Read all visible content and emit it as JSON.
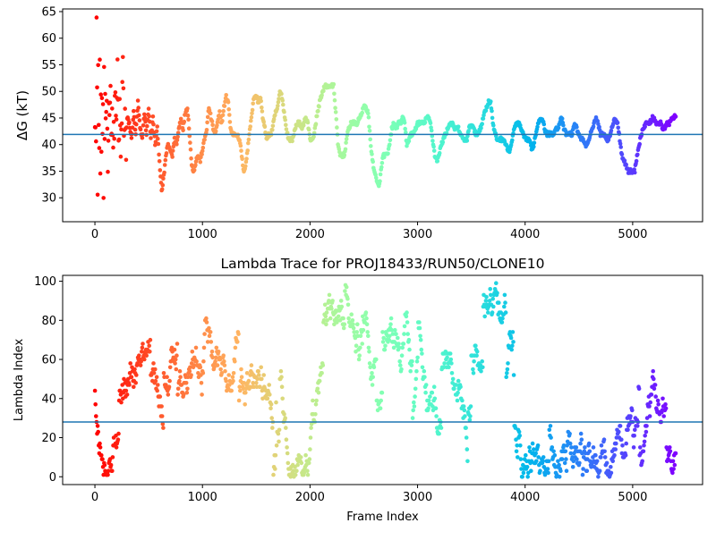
{
  "figure": {
    "background": "#ffffff",
    "hline_color": "#1f77b4"
  },
  "chart_data": [
    {
      "type": "scatter",
      "title": "",
      "xlabel": "",
      "ylabel": "ΔG (kT)",
      "xlim": [
        -300,
        5650
      ],
      "ylim": [
        25.5,
        65.5
      ],
      "xticks": [
        0,
        1000,
        2000,
        3000,
        4000,
        5000
      ],
      "yticks": [
        30,
        35,
        40,
        45,
        50,
        55,
        60,
        65
      ],
      "xtick_labels": [
        "0",
        "1000",
        "2000",
        "3000",
        "4000",
        "5000"
      ],
      "ytick_labels": [
        "30",
        "35",
        "40",
        "45",
        "50",
        "55",
        "60",
        "65"
      ],
      "hline": 41.9,
      "colormap": "rainbow",
      "colormap_direction": "red at frame 0 to violet at last frame",
      "x_range": [
        0,
        5400
      ],
      "anchors": [
        [
          0,
          50
        ],
        [
          3,
          30
        ],
        [
          6,
          60
        ],
        [
          10,
          40
        ],
        [
          15,
          62
        ],
        [
          20,
          45
        ],
        [
          25,
          36
        ],
        [
          30,
          55
        ],
        [
          35,
          43
        ],
        [
          40,
          38
        ],
        [
          45,
          52
        ],
        [
          50,
          41
        ],
        [
          55,
          46
        ],
        [
          60,
          34
        ],
        [
          65,
          53
        ],
        [
          70,
          40
        ],
        [
          75,
          48
        ],
        [
          80,
          31
        ],
        [
          85,
          50
        ],
        [
          90,
          42
        ],
        [
          95,
          45
        ],
        [
          100,
          40
        ],
        [
          110,
          49
        ],
        [
          120,
          37
        ],
        [
          130,
          46
        ],
        [
          140,
          52
        ],
        [
          150,
          43
        ],
        [
          160,
          47
        ],
        [
          170,
          39
        ],
        [
          180,
          44
        ],
        [
          190,
          51
        ],
        [
          200,
          42
        ],
        [
          210,
          55
        ],
        [
          220,
          40
        ],
        [
          230,
          46
        ],
        [
          240,
          38
        ],
        [
          250,
          45
        ],
        [
          260,
          56
        ],
        [
          270,
          42
        ],
        [
          280,
          47
        ],
        [
          290,
          37
        ],
        [
          300,
          45
        ],
        [
          320,
          44
        ],
        [
          340,
          41
        ],
        [
          360,
          46
        ],
        [
          380,
          42
        ],
        [
          400,
          48
        ],
        [
          420,
          43
        ],
        [
          440,
          41
        ],
        [
          460,
          46
        ],
        [
          480,
          42
        ],
        [
          500,
          47
        ],
        [
          520,
          41
        ],
        [
          540,
          45
        ],
        [
          560,
          40
        ],
        [
          580,
          43
        ],
        [
          600,
          37
        ],
        [
          620,
          31
        ],
        [
          640,
          34
        ],
        [
          660,
          38
        ],
        [
          680,
          40
        ],
        [
          700,
          39
        ],
        [
          720,
          38
        ],
        [
          740,
          41
        ],
        [
          760,
          40
        ],
        [
          780,
          43
        ],
        [
          800,
          45
        ],
        [
          820,
          43
        ],
        [
          840,
          46
        ],
        [
          860,
          47
        ],
        [
          880,
          42
        ],
        [
          900,
          36
        ],
        [
          920,
          35
        ],
        [
          940,
          37
        ],
        [
          960,
          38
        ],
        [
          980,
          37
        ],
        [
          1000,
          39
        ],
        [
          1020,
          41
        ],
        [
          1040,
          43
        ],
        [
          1060,
          47
        ],
        [
          1080,
          45
        ],
        [
          1100,
          43
        ],
        [
          1120,
          42
        ],
        [
          1140,
          44
        ],
        [
          1160,
          46
        ],
        [
          1180,
          44
        ],
        [
          1200,
          47
        ],
        [
          1220,
          49
        ],
        [
          1240,
          48
        ],
        [
          1260,
          43
        ],
        [
          1280,
          42
        ],
        [
          1300,
          42
        ],
        [
          1320,
          42
        ],
        [
          1340,
          41
        ],
        [
          1360,
          39
        ],
        [
          1380,
          35
        ],
        [
          1400,
          36
        ],
        [
          1420,
          39
        ],
        [
          1440,
          43
        ],
        [
          1460,
          46
        ],
        [
          1480,
          49
        ],
        [
          1500,
          49
        ],
        [
          1520,
          48
        ],
        [
          1540,
          49
        ],
        [
          1560,
          45
        ],
        [
          1580,
          43
        ],
        [
          1600,
          41
        ],
        [
          1620,
          42
        ],
        [
          1640,
          42
        ],
        [
          1660,
          44
        ],
        [
          1680,
          46
        ],
        [
          1700,
          47
        ],
        [
          1720,
          50
        ],
        [
          1740,
          49
        ],
        [
          1760,
          46
        ],
        [
          1780,
          43
        ],
        [
          1800,
          41
        ],
        [
          1820,
          41
        ],
        [
          1840,
          41
        ],
        [
          1860,
          43
        ],
        [
          1880,
          44
        ],
        [
          1900,
          44
        ],
        [
          1920,
          43
        ],
        [
          1940,
          44
        ],
        [
          1960,
          45
        ],
        [
          1980,
          44
        ],
        [
          2000,
          41
        ],
        [
          2020,
          41
        ],
        [
          2040,
          42
        ],
        [
          2060,
          45
        ],
        [
          2080,
          47
        ],
        [
          2100,
          49
        ],
        [
          2120,
          50
        ],
        [
          2140,
          51
        ],
        [
          2160,
          51
        ],
        [
          2180,
          51
        ],
        [
          2200,
          51
        ],
        [
          2220,
          51
        ],
        [
          2240,
          46
        ],
        [
          2260,
          40
        ],
        [
          2280,
          38
        ],
        [
          2300,
          38
        ],
        [
          2320,
          38
        ],
        [
          2340,
          41
        ],
        [
          2360,
          43
        ],
        [
          2380,
          44
        ],
        [
          2400,
          44
        ],
        [
          2420,
          44
        ],
        [
          2440,
          44
        ],
        [
          2460,
          45
        ],
        [
          2480,
          46
        ],
        [
          2500,
          47
        ],
        [
          2520,
          47
        ],
        [
          2540,
          46
        ],
        [
          2560,
          41
        ],
        [
          2580,
          37
        ],
        [
          2600,
          35
        ],
        [
          2620,
          33
        ],
        [
          2640,
          32
        ],
        [
          2660,
          35
        ],
        [
          2680,
          38
        ],
        [
          2700,
          38
        ],
        [
          2720,
          38
        ],
        [
          2740,
          40
        ],
        [
          2760,
          43
        ],
        [
          2780,
          44
        ],
        [
          2800,
          43
        ],
        [
          2820,
          44
        ],
        [
          2840,
          44
        ],
        [
          2860,
          45
        ],
        [
          2880,
          44
        ],
        [
          2900,
          40
        ],
        [
          2920,
          41
        ],
        [
          2940,
          42
        ],
        [
          2960,
          42
        ],
        [
          2980,
          43
        ],
        [
          3000,
          44
        ],
        [
          3020,
          44
        ],
        [
          3040,
          44
        ],
        [
          3060,
          44
        ],
        [
          3080,
          45
        ],
        [
          3100,
          45
        ],
        [
          3120,
          44
        ],
        [
          3140,
          41
        ],
        [
          3160,
          38
        ],
        [
          3180,
          37
        ],
        [
          3200,
          38
        ],
        [
          3220,
          40
        ],
        [
          3240,
          41
        ],
        [
          3260,
          42
        ],
        [
          3280,
          43
        ],
        [
          3300,
          44
        ],
        [
          3320,
          44
        ],
        [
          3340,
          43
        ],
        [
          3360,
          43
        ],
        [
          3380,
          43
        ],
        [
          3400,
          42
        ],
        [
          3420,
          41
        ],
        [
          3440,
          41
        ],
        [
          3460,
          41
        ],
        [
          3480,
          43
        ],
        [
          3500,
          44
        ],
        [
          3520,
          43
        ],
        [
          3540,
          42
        ],
        [
          3560,
          42
        ],
        [
          3580,
          43
        ],
        [
          3600,
          44
        ],
        [
          3620,
          46
        ],
        [
          3640,
          47
        ],
        [
          3660,
          48
        ],
        [
          3680,
          48
        ],
        [
          3700,
          44
        ],
        [
          3720,
          42
        ],
        [
          3740,
          41
        ],
        [
          3760,
          41
        ],
        [
          3780,
          41
        ],
        [
          3800,
          41
        ],
        [
          3820,
          40
        ],
        [
          3840,
          39
        ],
        [
          3860,
          39
        ],
        [
          3880,
          41
        ],
        [
          3900,
          43
        ],
        [
          3920,
          44
        ],
        [
          3940,
          44
        ],
        [
          3960,
          43
        ],
        [
          3980,
          42
        ],
        [
          4000,
          41
        ],
        [
          4020,
          41
        ],
        [
          4040,
          41
        ],
        [
          4060,
          39
        ],
        [
          4080,
          40
        ],
        [
          4100,
          42
        ],
        [
          4120,
          44
        ],
        [
          4140,
          45
        ],
        [
          4160,
          45
        ],
        [
          4180,
          43
        ],
        [
          4200,
          42
        ],
        [
          4220,
          42
        ],
        [
          4240,
          42
        ],
        [
          4260,
          42
        ],
        [
          4280,
          43
        ],
        [
          4300,
          43
        ],
        [
          4320,
          44
        ],
        [
          4340,
          45
        ],
        [
          4360,
          43
        ],
        [
          4380,
          42
        ],
        [
          4400,
          42
        ],
        [
          4420,
          42
        ],
        [
          4440,
          42
        ],
        [
          4460,
          44
        ],
        [
          4480,
          43
        ],
        [
          4500,
          42
        ],
        [
          4520,
          41
        ],
        [
          4540,
          41
        ],
        [
          4560,
          40
        ],
        [
          4580,
          40
        ],
        [
          4600,
          41
        ],
        [
          4620,
          43
        ],
        [
          4640,
          44
        ],
        [
          4660,
          45
        ],
        [
          4680,
          44
        ],
        [
          4700,
          42
        ],
        [
          4720,
          42
        ],
        [
          4740,
          42
        ],
        [
          4760,
          41
        ],
        [
          4780,
          41
        ],
        [
          4800,
          43
        ],
        [
          4820,
          44
        ],
        [
          4840,
          45
        ],
        [
          4860,
          44
        ],
        [
          4880,
          41
        ],
        [
          4900,
          38
        ],
        [
          4920,
          37
        ],
        [
          4940,
          36
        ],
        [
          4960,
          35
        ],
        [
          4980,
          35
        ],
        [
          5000,
          35
        ],
        [
          5020,
          35
        ],
        [
          5040,
          38
        ],
        [
          5060,
          40
        ],
        [
          5080,
          42
        ],
        [
          5100,
          43
        ],
        [
          5120,
          44
        ],
        [
          5140,
          44
        ],
        [
          5160,
          44
        ],
        [
          5180,
          45
        ],
        [
          5200,
          45
        ],
        [
          5220,
          44
        ],
        [
          5240,
          44
        ],
        [
          5260,
          44
        ],
        [
          5280,
          43
        ],
        [
          5300,
          43
        ],
        [
          5320,
          44
        ],
        [
          5340,
          44
        ],
        [
          5360,
          45
        ],
        [
          5380,
          45
        ],
        [
          5400,
          45.5
        ]
      ]
    },
    {
      "type": "scatter",
      "title": "Lambda Trace for PROJ18433/RUN50/CLONE10",
      "xlabel": "Frame Index",
      "ylabel": "Lambda Index",
      "xlim": [
        -300,
        5650
      ],
      "ylim": [
        -4,
        103
      ],
      "xticks": [
        0,
        1000,
        2000,
        3000,
        4000,
        5000
      ],
      "yticks": [
        0,
        20,
        40,
        60,
        80,
        100
      ],
      "xtick_labels": [
        "0",
        "1000",
        "2000",
        "3000",
        "4000",
        "5000"
      ],
      "ytick_labels": [
        "0",
        "20",
        "40",
        "60",
        "80",
        "100"
      ],
      "hline": 28,
      "colormap": "rainbow",
      "colormap_direction": "red at frame 0 to violet at last frame",
      "x_range": [
        0,
        5400
      ],
      "y_range": [
        0,
        99
      ],
      "pattern": "random walk over lambda index 0–99, dense vertical streaks of points across all frames"
    }
  ]
}
